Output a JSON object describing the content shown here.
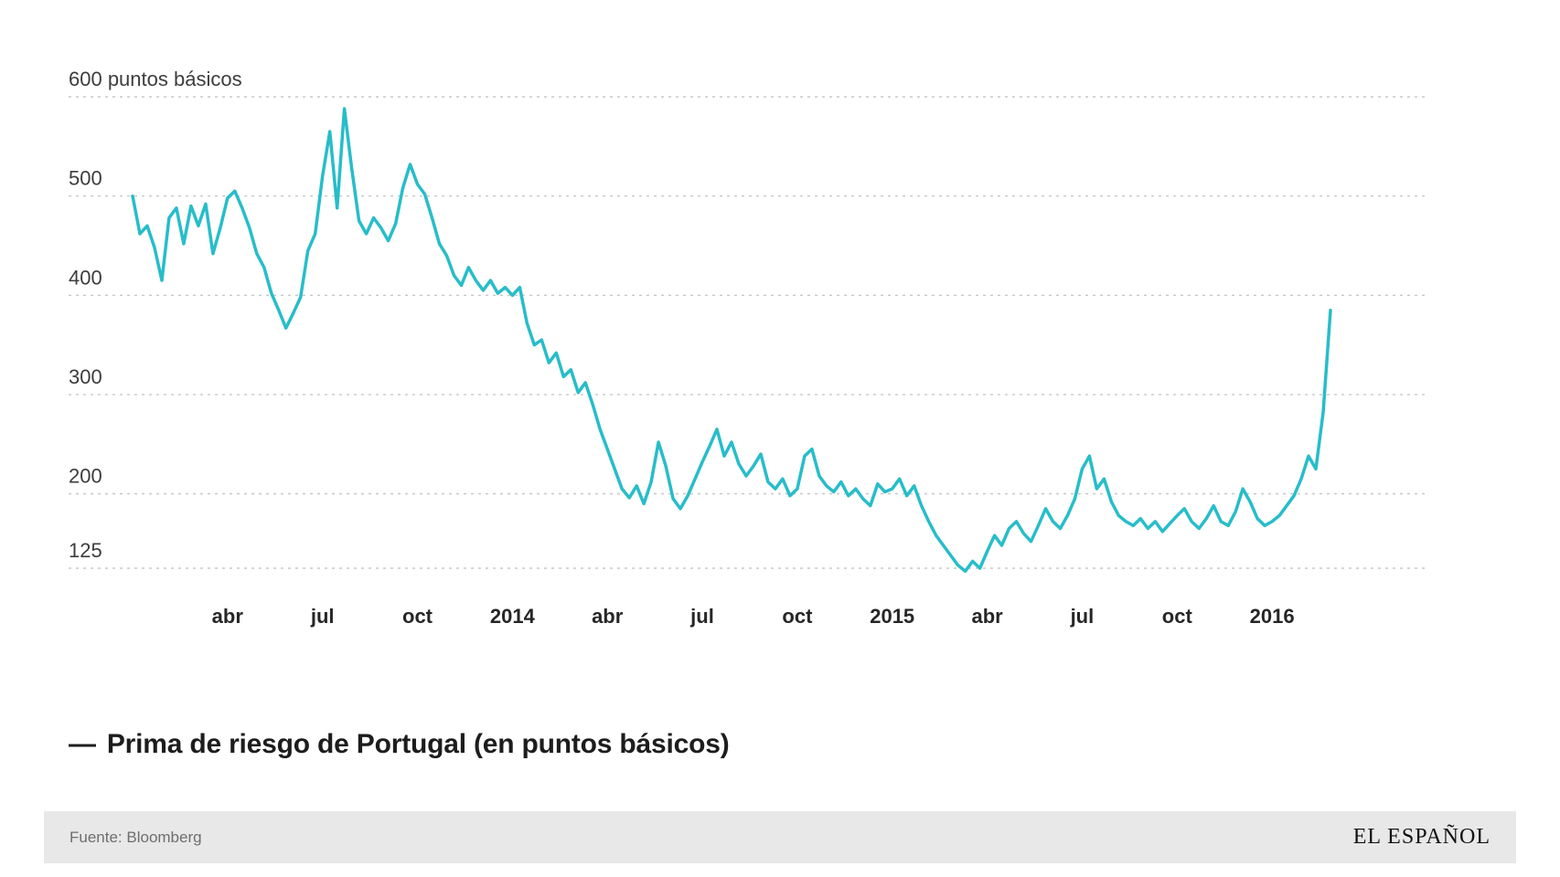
{
  "chart": {
    "grid_color": "#c8c8c8",
    "y_text_color": "#3d3d3d",
    "x_text_color": "#262626",
    "line_color": "#27bdc9"
  },
  "chart_data": {
    "type": "line",
    "title": "Prima de riesgo de Portugal (en puntos básicos)",
    "ylabel": "puntos básicos",
    "ylim": [
      125,
      600
    ],
    "grid": "dashed-horizontal",
    "legend_position": "below",
    "y_ticks": [
      {
        "value": 600,
        "label": "600 puntos básicos"
      },
      {
        "value": 500,
        "label": "500"
      },
      {
        "value": 400,
        "label": "400"
      },
      {
        "value": 300,
        "label": "300"
      },
      {
        "value": 200,
        "label": "200"
      },
      {
        "value": 125,
        "label": "125"
      }
    ],
    "x_ticks": [
      {
        "label": "abr",
        "i": 13
      },
      {
        "label": "jul",
        "i": 26
      },
      {
        "label": "oct",
        "i": 39
      },
      {
        "label": "2014",
        "i": 52
      },
      {
        "label": "abr",
        "i": 65
      },
      {
        "label": "jul",
        "i": 78
      },
      {
        "label": "oct",
        "i": 91
      },
      {
        "label": "2015",
        "i": 104
      },
      {
        "label": "abr",
        "i": 117
      },
      {
        "label": "jul",
        "i": 130
      },
      {
        "label": "oct",
        "i": 143
      },
      {
        "label": "2016",
        "i": 156
      }
    ],
    "x_range_note": "weekly points, enero 2013 - febrero 2016",
    "series": [
      {
        "name": "Prima de riesgo de Portugal (en puntos básicos)",
        "color": "#27bdc9",
        "values": [
          500,
          462,
          470,
          448,
          415,
          478,
          488,
          452,
          490,
          470,
          492,
          442,
          468,
          498,
          505,
          488,
          468,
          442,
          428,
          402,
          385,
          367,
          382,
          398,
          445,
          462,
          520,
          565,
          488,
          588,
          528,
          475,
          462,
          478,
          468,
          455,
          472,
          508,
          532,
          512,
          502,
          478,
          452,
          440,
          420,
          410,
          428,
          415,
          405,
          415,
          402,
          408,
          400,
          408,
          372,
          350,
          355,
          332,
          342,
          318,
          325,
          302,
          312,
          290,
          265,
          245,
          225,
          205,
          196,
          208,
          190,
          212,
          252,
          228,
          195,
          185,
          198,
          215,
          232,
          248,
          265,
          238,
          252,
          230,
          218,
          228,
          240,
          212,
          205,
          215,
          198,
          205,
          238,
          245,
          218,
          208,
          202,
          212,
          198,
          205,
          195,
          188,
          210,
          202,
          205,
          215,
          198,
          208,
          188,
          172,
          158,
          148,
          138,
          128,
          122,
          132,
          125,
          142,
          158,
          148,
          165,
          172,
          160,
          152,
          168,
          185,
          172,
          165,
          178,
          195,
          225,
          238,
          205,
          215,
          192,
          178,
          172,
          168,
          175,
          165,
          172,
          162,
          170,
          178,
          185,
          172,
          165,
          175,
          188,
          172,
          168,
          182,
          205,
          192,
          175,
          168,
          172,
          178,
          188,
          198,
          215,
          238,
          225,
          282,
          385
        ]
      }
    ]
  },
  "legend": {
    "dash": "—",
    "label": "Prima de riesgo de Portugal (en puntos básicos)"
  },
  "footer": {
    "source": "Fuente: Bloomberg",
    "brand": "EL ESPAÑOL"
  }
}
